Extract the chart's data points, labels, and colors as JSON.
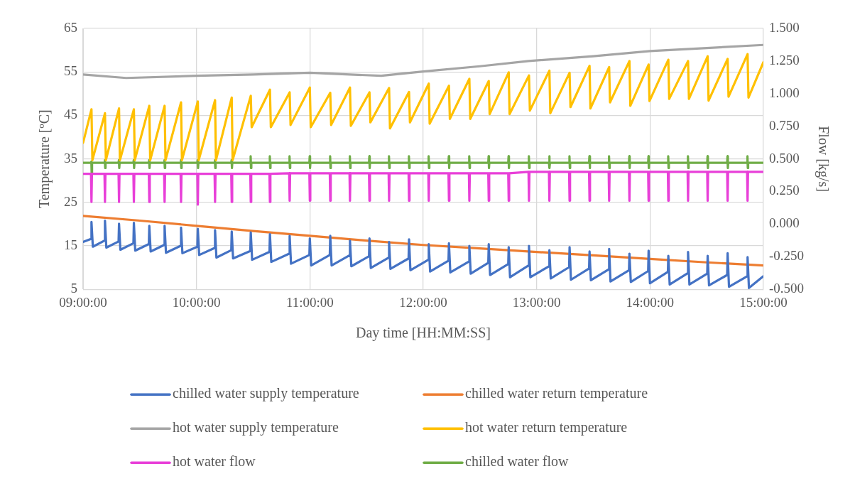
{
  "chart_data": {
    "type": "line",
    "xlabel": "Day time [HH:MM:SS]",
    "ylabel": "Temperature [ºC]",
    "y2label": "Flow [kg/s]",
    "xlim": [
      9,
      15
    ],
    "xticks": [
      {
        "value": 9,
        "label": "09:00:00"
      },
      {
        "value": 10,
        "label": "10:00:00"
      },
      {
        "value": 11,
        "label": "11:00:00"
      },
      {
        "value": 12,
        "label": "12:00:00"
      },
      {
        "value": 13,
        "label": "13:00:00"
      },
      {
        "value": 14,
        "label": "14:00:00"
      },
      {
        "value": 15,
        "label": "15:00:00"
      }
    ],
    "ylim": [
      5,
      65
    ],
    "yticks": [
      5,
      15,
      25,
      35,
      45,
      55,
      65
    ],
    "y2lim": [
      -0.5,
      1.5
    ],
    "y2ticks": [
      {
        "value": -0.5,
        "label": "-0.500"
      },
      {
        "value": -0.25,
        "label": "-0.250"
      },
      {
        "value": 0,
        "label": "0.000"
      },
      {
        "value": 0.25,
        "label": "0.250"
      },
      {
        "value": 0.5,
        "label": "0.500"
      },
      {
        "value": 0.75,
        "label": "0.750"
      },
      {
        "value": 1,
        "label": "1.000"
      },
      {
        "value": 1.25,
        "label": "1.250"
      },
      {
        "value": 1.5,
        "label": "1.500"
      }
    ],
    "grid": true,
    "legend": "bottom",
    "marker": "none",
    "line_style": "solid",
    "series": [
      {
        "name": "chilled water supply temperature",
        "color": "#4472c4",
        "x": [
          9.0,
          9.07,
          9.074,
          9.086,
          9.189,
          9.193,
          9.205,
          9.313,
          9.317,
          9.329,
          9.444,
          9.448,
          9.46,
          9.58,
          9.584,
          9.596,
          9.715,
          9.719,
          9.731,
          9.86,
          9.864,
          9.876,
          10.008,
          10.012,
          10.024,
          10.16,
          10.164,
          10.176,
          10.307,
          10.311,
          10.323,
          10.475,
          10.479,
          10.491,
          10.644,
          10.648,
          10.66,
          10.818,
          10.822,
          10.834,
          10.996,
          11.0,
          11.012,
          11.176,
          11.18,
          11.192,
          11.35,
          11.354,
          11.366,
          11.522,
          11.526,
          11.538,
          11.695,
          11.699,
          11.711,
          11.871,
          11.875,
          11.887,
          12.045,
          12.049,
          12.061,
          12.223,
          12.227,
          12.239,
          12.403,
          12.407,
          12.419,
          12.574,
          12.578,
          12.59,
          12.75,
          12.754,
          12.766,
          12.929,
          12.933,
          12.945,
          13.109,
          13.113,
          13.125,
          13.287,
          13.291,
          13.303,
          13.463,
          13.467,
          13.479,
          13.636,
          13.64,
          13.652,
          13.815,
          13.819,
          13.831,
          13.984,
          13.988,
          14.0,
          14.158,
          14.162,
          14.174,
          14.332,
          14.336,
          14.348,
          14.505,
          14.509,
          14.521,
          14.681,
          14.685,
          14.697,
          14.857,
          14.861,
          14.873,
          15.0
        ],
        "values": [
          15.9,
          16.6,
          20.5,
          14.8,
          16.2,
          20.8,
          14.6,
          16.0,
          20.1,
          14.1,
          15.6,
          20.3,
          13.9,
          15.4,
          19.6,
          13.7,
          15.2,
          19.6,
          13.4,
          15.0,
          19.2,
          13.3,
          14.8,
          18.9,
          12.9,
          14.5,
          18.6,
          12.3,
          14.0,
          18.3,
          12.1,
          13.8,
          18.1,
          11.8,
          13.6,
          17.7,
          11.3,
          13.2,
          17.3,
          10.9,
          12.9,
          16.7,
          10.5,
          12.9,
          17.3,
          10.5,
          12.8,
          16.2,
          10.3,
          12.6,
          16.7,
          9.9,
          12.3,
          15.9,
          9.7,
          12.1,
          16.5,
          9.4,
          11.8,
          15.4,
          9.1,
          11.6,
          15.6,
          8.9,
          11.4,
          15.0,
          8.6,
          11.1,
          15.4,
          8.3,
          10.8,
          14.7,
          7.8,
          10.5,
          15.0,
          7.8,
          10.3,
          14.0,
          7.5,
          10.1,
          14.7,
          7.2,
          9.8,
          13.7,
          7.1,
          9.6,
          14.3,
          6.8,
          9.4,
          13.2,
          6.7,
          9.2,
          13.9,
          6.4,
          9.0,
          12.7,
          6.1,
          8.7,
          13.6,
          6.1,
          8.6,
          12.7,
          5.9,
          8.3,
          13.3,
          5.6,
          8.0,
          12.4,
          5.3,
          8.0
        ]
      },
      {
        "name": "chilled water return temperature",
        "color": "#ed7d31",
        "x": [
          9.0,
          9.5,
          10.0,
          10.5,
          11.0,
          11.5,
          12.0,
          12.5,
          13.0,
          13.5,
          14.0,
          14.5,
          15.0
        ],
        "values": [
          21.9,
          20.8,
          19.6,
          18.4,
          17.3,
          16.2,
          15.2,
          14.4,
          13.6,
          12.8,
          12.0,
          11.2,
          10.5
        ]
      },
      {
        "name": "hot water supply temperature",
        "color": "#a5a5a5",
        "x": [
          9.0,
          9.38,
          10.0,
          10.5,
          11.0,
          11.63,
          12.0,
          12.5,
          12.93,
          13.5,
          14.0,
          14.5,
          15.0
        ],
        "values": [
          54.4,
          53.6,
          54.1,
          54.4,
          54.8,
          54.1,
          55.1,
          56.3,
          57.5,
          58.6,
          59.8,
          60.5,
          61.2
        ]
      },
      {
        "name": "hot water return temperature",
        "color": "#ffc000",
        "x": [
          9.0,
          9.074,
          9.082,
          9.193,
          9.201,
          9.317,
          9.325,
          9.448,
          9.456,
          9.584,
          9.592,
          9.719,
          9.727,
          9.864,
          9.872,
          10.012,
          10.02,
          10.164,
          10.172,
          10.311,
          10.319,
          10.479,
          10.487,
          10.648,
          10.656,
          10.822,
          10.83,
          11.0,
          11.008,
          11.18,
          11.188,
          11.354,
          11.362,
          11.526,
          11.534,
          11.699,
          11.707,
          11.875,
          11.883,
          12.049,
          12.057,
          12.227,
          12.235,
          12.407,
          12.415,
          12.578,
          12.586,
          12.754,
          12.762,
          12.933,
          12.941,
          13.113,
          13.121,
          13.291,
          13.299,
          13.467,
          13.475,
          13.64,
          13.648,
          13.819,
          13.827,
          13.988,
          13.996,
          14.162,
          14.17,
          14.336,
          14.344,
          14.509,
          14.517,
          14.685,
          14.693,
          14.861,
          14.869,
          15.0
        ],
        "values": [
          38.7,
          46.4,
          34.7,
          45.5,
          34.7,
          46.6,
          34.7,
          46.4,
          34.7,
          47.2,
          34.7,
          47.2,
          34.7,
          48.0,
          34.7,
          48.2,
          34.7,
          48.5,
          34.7,
          49.1,
          34.7,
          49.5,
          42.3,
          50.9,
          42.3,
          50.3,
          42.8,
          51.4,
          42.3,
          50.2,
          42.8,
          51.4,
          42.6,
          50.3,
          43.4,
          51.3,
          42.0,
          50.4,
          43.4,
          52.3,
          43.1,
          51.8,
          44.2,
          53.4,
          44.2,
          52.9,
          45.3,
          54.9,
          45.3,
          54.2,
          46.1,
          55.3,
          45.5,
          54.8,
          46.9,
          56.4,
          46.6,
          56.1,
          48.0,
          57.5,
          47.2,
          56.7,
          48.3,
          57.8,
          48.8,
          57.5,
          48.8,
          58.6,
          48.4,
          58.0,
          49.3,
          59.1,
          49.1,
          57.2
        ]
      },
      {
        "name": "hot water flow",
        "color": "#e83fd8",
        "axis": "y2",
        "x": [
          9.0,
          9.07,
          9.074,
          9.078,
          9.189,
          9.193,
          9.197,
          9.313,
          9.317,
          9.321,
          9.444,
          9.448,
          9.452,
          9.58,
          9.584,
          9.588,
          9.715,
          9.719,
          9.723,
          9.86,
          9.864,
          9.868,
          10.008,
          10.012,
          10.016,
          10.16,
          10.164,
          10.168,
          10.307,
          10.311,
          10.315,
          10.475,
          10.479,
          10.483,
          10.644,
          10.648,
          10.652,
          10.818,
          10.822,
          10.826,
          10.996,
          11.0,
          11.004,
          11.176,
          11.18,
          11.184,
          11.35,
          11.354,
          11.358,
          11.522,
          11.526,
          11.53,
          11.695,
          11.699,
          11.703,
          11.871,
          11.875,
          11.879,
          12.045,
          12.049,
          12.053,
          12.223,
          12.227,
          12.231,
          12.403,
          12.407,
          12.411,
          12.574,
          12.578,
          12.582,
          12.75,
          12.754,
          12.758,
          12.929,
          12.933,
          12.937,
          13.109,
          13.113,
          13.117,
          13.287,
          13.291,
          13.295,
          13.463,
          13.467,
          13.471,
          13.636,
          13.64,
          13.644,
          13.815,
          13.819,
          13.823,
          13.984,
          13.988,
          13.992,
          14.158,
          14.162,
          14.166,
          14.332,
          14.336,
          14.34,
          14.505,
          14.509,
          14.513,
          14.681,
          14.685,
          14.689,
          14.857,
          14.861,
          14.865,
          15.0
        ],
        "values": [
          0.385,
          0.385,
          0.17,
          0.385,
          0.385,
          0.17,
          0.385,
          0.385,
          0.17,
          0.385,
          0.385,
          0.17,
          0.385,
          0.385,
          0.17,
          0.385,
          0.385,
          0.17,
          0.385,
          0.385,
          0.17,
          0.385,
          0.385,
          0.15,
          0.385,
          0.385,
          0.17,
          0.385,
          0.385,
          0.17,
          0.385,
          0.385,
          0.17,
          0.385,
          0.385,
          0.17,
          0.385,
          0.39,
          0.18,
          0.39,
          0.39,
          0.18,
          0.39,
          0.39,
          0.18,
          0.39,
          0.39,
          0.18,
          0.39,
          0.39,
          0.18,
          0.39,
          0.39,
          0.18,
          0.39,
          0.39,
          0.18,
          0.39,
          0.39,
          0.18,
          0.39,
          0.39,
          0.18,
          0.39,
          0.39,
          0.18,
          0.39,
          0.39,
          0.18,
          0.39,
          0.39,
          0.18,
          0.39,
          0.4,
          0.18,
          0.4,
          0.4,
          0.18,
          0.4,
          0.4,
          0.18,
          0.4,
          0.4,
          0.18,
          0.4,
          0.4,
          0.18,
          0.4,
          0.4,
          0.18,
          0.4,
          0.4,
          0.18,
          0.4,
          0.4,
          0.18,
          0.4,
          0.4,
          0.18,
          0.4,
          0.4,
          0.18,
          0.4,
          0.4,
          0.18,
          0.4,
          0.4,
          0.18,
          0.4,
          0.4
        ]
      },
      {
        "name": "chilled water flow",
        "color": "#70ad47",
        "axis": "y2",
        "x": [
          9.0,
          9.07,
          9.073,
          9.076,
          9.079,
          9.189,
          9.192,
          9.195,
          9.198,
          9.313,
          9.316,
          9.319,
          9.322,
          9.444,
          9.447,
          9.45,
          9.453,
          9.58,
          9.583,
          9.586,
          9.589,
          9.715,
          9.718,
          9.721,
          9.724,
          9.86,
          9.863,
          9.866,
          9.869,
          10.008,
          10.011,
          10.014,
          10.017,
          10.16,
          10.163,
          10.166,
          10.169,
          10.307,
          10.31,
          10.313,
          10.316,
          10.475,
          10.478,
          10.481,
          10.484,
          10.644,
          10.647,
          10.65,
          10.653,
          10.818,
          10.821,
          10.824,
          10.827,
          10.996,
          10.999,
          11.002,
          11.005,
          11.176,
          11.179,
          11.182,
          11.185,
          11.35,
          11.353,
          11.356,
          11.359,
          11.522,
          11.525,
          11.528,
          11.531,
          11.695,
          11.698,
          11.701,
          11.704,
          11.871,
          11.874,
          11.877,
          11.88,
          12.045,
          12.048,
          12.051,
          12.054,
          12.223,
          12.226,
          12.229,
          12.232,
          12.403,
          12.406,
          12.409,
          12.412,
          12.574,
          12.577,
          12.58,
          12.583,
          12.75,
          12.753,
          12.756,
          12.759,
          12.929,
          12.932,
          12.935,
          12.938,
          13.109,
          13.112,
          13.115,
          13.118,
          13.287,
          13.29,
          13.293,
          13.296,
          13.463,
          13.466,
          13.469,
          13.472,
          13.636,
          13.639,
          13.642,
          13.645,
          13.815,
          13.818,
          13.821,
          13.824,
          13.984,
          13.987,
          13.99,
          13.993,
          14.158,
          14.161,
          14.164,
          14.167,
          14.332,
          14.335,
          14.338,
          14.341,
          14.505,
          14.508,
          14.511,
          14.514,
          14.681,
          14.684,
          14.687,
          14.69,
          14.857,
          14.86,
          14.863,
          14.866,
          15.0
        ],
        "values": [
          0.47,
          0.47,
          0.48,
          0.38,
          0.47,
          0.47,
          0.49,
          0.43,
          0.47,
          0.47,
          0.49,
          0.43,
          0.47,
          0.47,
          0.49,
          0.43,
          0.47,
          0.47,
          0.49,
          0.43,
          0.47,
          0.47,
          0.49,
          0.43,
          0.47,
          0.47,
          0.49,
          0.43,
          0.47,
          0.47,
          0.49,
          0.43,
          0.47,
          0.47,
          0.49,
          0.43,
          0.47,
          0.47,
          0.49,
          0.43,
          0.47,
          0.47,
          0.52,
          0.43,
          0.47,
          0.47,
          0.52,
          0.43,
          0.47,
          0.47,
          0.52,
          0.43,
          0.47,
          0.47,
          0.52,
          0.43,
          0.47,
          0.47,
          0.52,
          0.43,
          0.47,
          0.47,
          0.52,
          0.43,
          0.47,
          0.47,
          0.52,
          0.43,
          0.47,
          0.47,
          0.52,
          0.43,
          0.47,
          0.47,
          0.52,
          0.43,
          0.47,
          0.47,
          0.52,
          0.43,
          0.47,
          0.47,
          0.52,
          0.43,
          0.47,
          0.47,
          0.52,
          0.43,
          0.47,
          0.47,
          0.52,
          0.43,
          0.47,
          0.47,
          0.52,
          0.43,
          0.47,
          0.47,
          0.52,
          0.43,
          0.47,
          0.47,
          0.52,
          0.43,
          0.47,
          0.47,
          0.52,
          0.43,
          0.47,
          0.47,
          0.52,
          0.43,
          0.47,
          0.47,
          0.52,
          0.43,
          0.47,
          0.47,
          0.52,
          0.43,
          0.47,
          0.47,
          0.52,
          0.43,
          0.47,
          0.47,
          0.52,
          0.43,
          0.47,
          0.47,
          0.52,
          0.43,
          0.47,
          0.47,
          0.52,
          0.43,
          0.47,
          0.47,
          0.52,
          0.43,
          0.47,
          0.47,
          0.52,
          0.43,
          0.47,
          0.47
        ]
      }
    ]
  }
}
